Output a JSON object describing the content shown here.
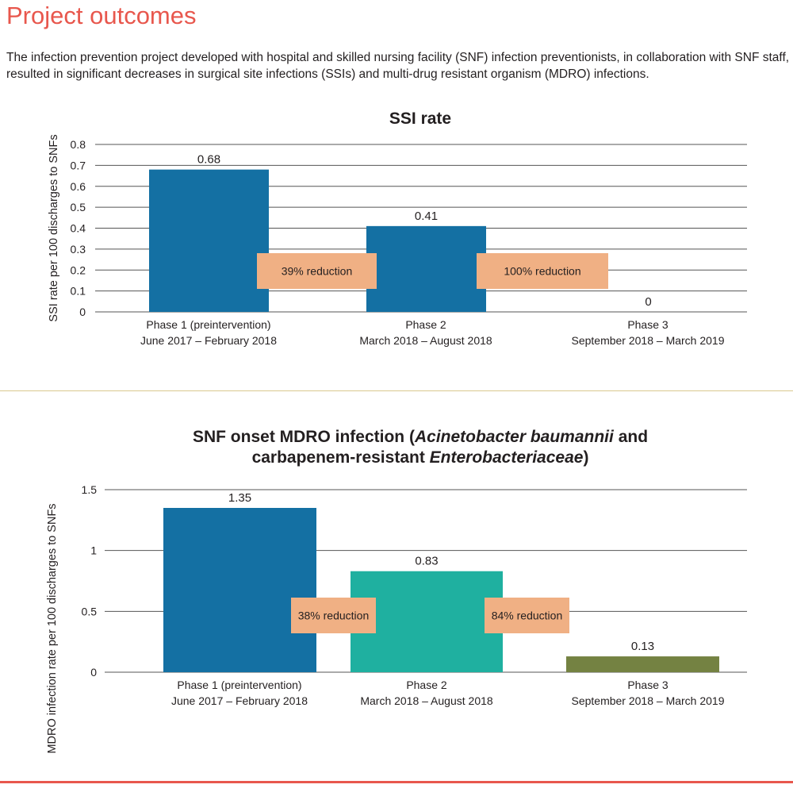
{
  "header": {
    "title": "Project outcomes",
    "intro": "The infection prevention project developed with hospital and skilled nursing facility (SNF) infection preventionists, in collaboration with SNF staff, resulted in significant decreases in surgical site infections (SSIs) and multi-drug resistant organism (MDRO) infections."
  },
  "colors": {
    "title": "#e8574d",
    "phase1": "#1470a3",
    "phase2_mdro": "#1fb0a0",
    "phase3_mdro": "#748242",
    "reduction_box": "#f0b084",
    "divider": "#d9c98e"
  },
  "chart_data": [
    {
      "type": "bar",
      "title": "SSI rate",
      "ylabel": "SSI rate per 100 discharges to SNFs",
      "xlabel": "",
      "ylim": [
        0,
        0.8
      ],
      "yticks": [
        "0",
        "0.1",
        "0.2",
        "0.3",
        "0.4",
        "0.5",
        "0.6",
        "0.7",
        "0.8"
      ],
      "grid": true,
      "categories": [
        {
          "name": "Phase 1 (preintervention)",
          "dates": "June 2017 – February 2018"
        },
        {
          "name": "Phase 2",
          "dates": "March 2018 – August 2018"
        },
        {
          "name": "Phase 3",
          "dates": "September 2018 – March 2019"
        }
      ],
      "values": [
        0.68,
        0.41,
        0
      ],
      "value_labels": [
        "0.68",
        "0.41",
        "0"
      ],
      "bar_colors": [
        "#1470a3",
        "#1470a3",
        "#1470a3"
      ],
      "annotations": [
        "39% reduction",
        "100% reduction"
      ]
    },
    {
      "type": "bar",
      "title_parts": [
        {
          "text": "SNF onset MDRO infection (",
          "italic": false
        },
        {
          "text": "Acinetobacter baumannii",
          "italic": true
        },
        {
          "text": " and",
          "italic": false
        },
        {
          "text": "\n",
          "italic": false
        },
        {
          "text": "carbapenem-resistant ",
          "italic": false
        },
        {
          "text": "Enterobacteriaceae",
          "italic": true
        },
        {
          "text": ")",
          "italic": false
        }
      ],
      "ylabel": "MDRO infection rate per 100 discharges to SNFs",
      "xlabel": "",
      "ylim": [
        0,
        1.5
      ],
      "yticks": [
        "0",
        "0.5",
        "1",
        "1.5"
      ],
      "grid": true,
      "categories": [
        {
          "name": "Phase 1 (preintervention)",
          "dates": "June 2017 – February 2018"
        },
        {
          "name": "Phase 2",
          "dates": "March 2018 – August 2018"
        },
        {
          "name": "Phase 3",
          "dates": "September 2018 – March 2019"
        }
      ],
      "values": [
        1.35,
        0.83,
        0.13
      ],
      "value_labels": [
        "1.35",
        "0.83",
        "0.13"
      ],
      "bar_colors": [
        "#1470a3",
        "#1fb0a0",
        "#748242"
      ],
      "annotations": [
        "38% reduction",
        "84% reduction"
      ]
    }
  ]
}
